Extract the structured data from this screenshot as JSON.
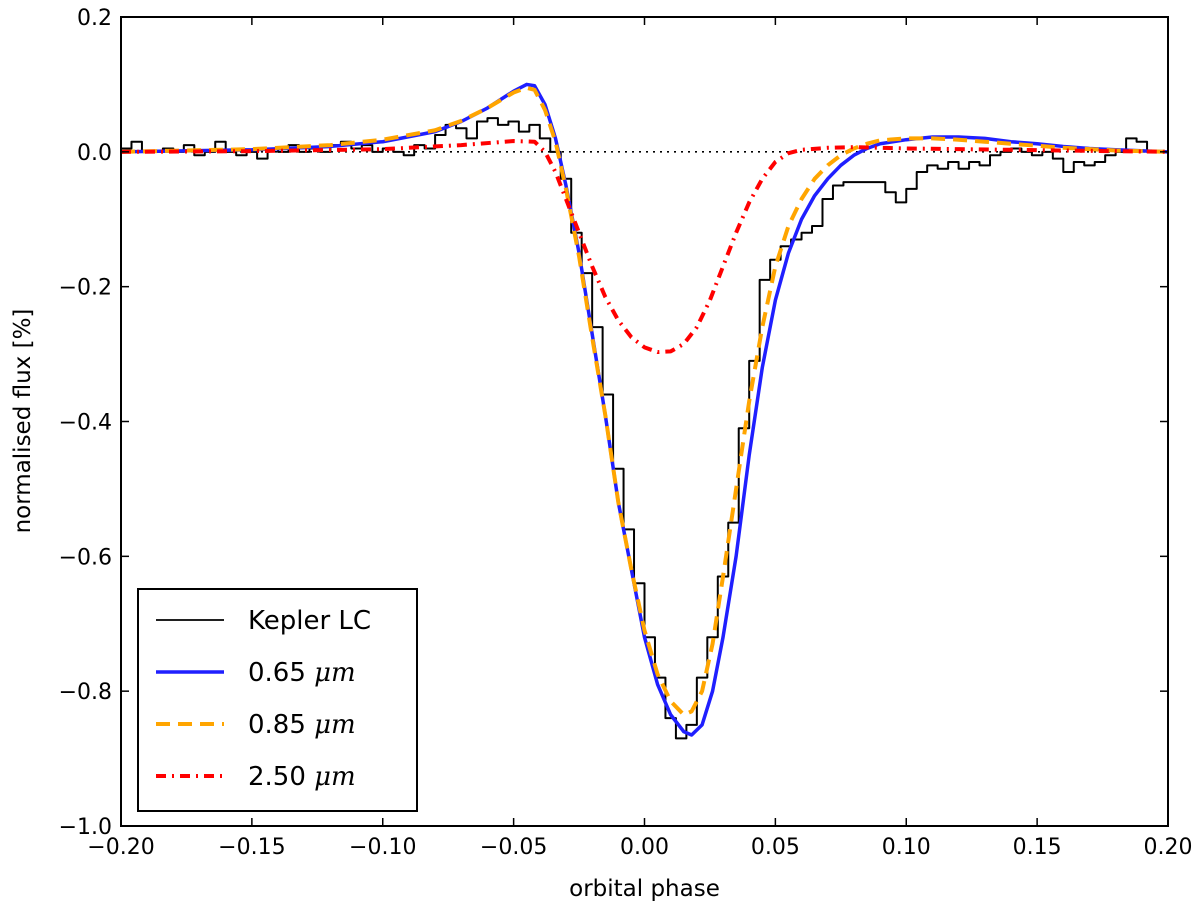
{
  "chart_data": {
    "type": "line",
    "xlabel": "orbital phase",
    "ylabel": "normalised flux [%]",
    "xlim": [
      -0.2,
      0.2
    ],
    "ylim": [
      -1.0,
      0.2
    ],
    "x_ticks": [
      -0.2,
      -0.15,
      -0.1,
      -0.05,
      0.0,
      0.05,
      0.1,
      0.15,
      0.2
    ],
    "x_tick_labels": [
      "−0.20",
      "−0.15",
      "−0.10",
      "−0.05",
      "0.00",
      "0.05",
      "0.10",
      "0.15",
      "0.20"
    ],
    "y_ticks": [
      -1.0,
      -0.8,
      -0.6,
      -0.4,
      -0.2,
      0.0,
      0.2
    ],
    "y_tick_labels": [
      "−1.0",
      "−0.8",
      "−0.6",
      "−0.4",
      "−0.2",
      "0.0",
      "0.2"
    ],
    "grid": false,
    "legend_placement": "lower-left",
    "reference_line": {
      "y": 0.0,
      "style": "dotted",
      "color": "#000000"
    },
    "series": [
      {
        "name": "Kepler LC",
        "style": "step",
        "color": "#000000",
        "x": [
          -0.2,
          -0.196,
          -0.192,
          -0.188,
          -0.184,
          -0.18,
          -0.176,
          -0.172,
          -0.168,
          -0.164,
          -0.16,
          -0.156,
          -0.152,
          -0.148,
          -0.144,
          -0.14,
          -0.136,
          -0.132,
          -0.128,
          -0.124,
          -0.12,
          -0.116,
          -0.112,
          -0.108,
          -0.104,
          -0.1,
          -0.096,
          -0.092,
          -0.088,
          -0.084,
          -0.08,
          -0.076,
          -0.072,
          -0.068,
          -0.064,
          -0.06,
          -0.056,
          -0.052,
          -0.048,
          -0.044,
          -0.04,
          -0.036,
          -0.032,
          -0.028,
          -0.024,
          -0.02,
          -0.016,
          -0.012,
          -0.008,
          -0.004,
          0.0,
          0.004,
          0.008,
          0.012,
          0.016,
          0.02,
          0.024,
          0.028,
          0.032,
          0.036,
          0.04,
          0.044,
          0.048,
          0.052,
          0.056,
          0.06,
          0.064,
          0.068,
          0.072,
          0.076,
          0.08,
          0.084,
          0.088,
          0.092,
          0.096,
          0.1,
          0.104,
          0.108,
          0.112,
          0.116,
          0.12,
          0.124,
          0.128,
          0.132,
          0.136,
          0.14,
          0.144,
          0.148,
          0.152,
          0.156,
          0.16,
          0.164,
          0.168,
          0.172,
          0.176,
          0.18,
          0.184,
          0.188,
          0.192,
          0.196
        ],
        "y": [
          0.005,
          0.015,
          0.0,
          0.0,
          0.005,
          0.0,
          0.01,
          -0.005,
          0.0,
          0.015,
          0.0,
          -0.005,
          0.0,
          -0.01,
          0.005,
          0.0,
          0.01,
          0.0,
          0.005,
          0.0,
          0.01,
          0.015,
          0.005,
          0.01,
          0.0,
          0.005,
          0.0,
          -0.005,
          0.01,
          0.005,
          0.025,
          0.04,
          0.035,
          0.02,
          0.045,
          0.05,
          0.04,
          0.045,
          0.03,
          0.04,
          0.02,
          0.0,
          -0.04,
          -0.12,
          -0.18,
          -0.26,
          -0.36,
          -0.47,
          -0.56,
          -0.64,
          -0.72,
          -0.78,
          -0.84,
          -0.87,
          -0.85,
          -0.78,
          -0.72,
          -0.63,
          -0.55,
          -0.41,
          -0.31,
          -0.19,
          -0.16,
          -0.14,
          -0.13,
          -0.12,
          -0.11,
          -0.07,
          -0.05,
          -0.045,
          -0.045,
          -0.045,
          -0.045,
          -0.06,
          -0.075,
          -0.055,
          -0.03,
          -0.02,
          -0.025,
          -0.015,
          -0.025,
          -0.015,
          -0.02,
          -0.005,
          0.0,
          0.005,
          0.0,
          -0.005,
          0.0,
          -0.01,
          -0.03,
          -0.015,
          -0.02,
          -0.015,
          -0.005,
          0.0,
          0.02,
          0.015,
          0.0,
          0.0
        ]
      },
      {
        "name": "0.65 μm",
        "style": "solid",
        "color": "#1f1fff",
        "x": [
          -0.2,
          -0.15,
          -0.12,
          -0.1,
          -0.08,
          -0.07,
          -0.06,
          -0.05,
          -0.045,
          -0.042,
          -0.038,
          -0.034,
          -0.03,
          -0.025,
          -0.02,
          -0.015,
          -0.01,
          -0.005,
          0.0,
          0.005,
          0.01,
          0.015,
          0.018,
          0.022,
          0.026,
          0.03,
          0.035,
          0.04,
          0.045,
          0.05,
          0.055,
          0.06,
          0.065,
          0.07,
          0.075,
          0.08,
          0.085,
          0.09,
          0.1,
          0.11,
          0.12,
          0.13,
          0.14,
          0.15,
          0.16,
          0.17,
          0.18,
          0.2
        ],
        "y": [
          0.0,
          0.003,
          0.008,
          0.015,
          0.03,
          0.045,
          0.065,
          0.09,
          0.1,
          0.098,
          0.07,
          0.02,
          -0.05,
          -0.15,
          -0.27,
          -0.39,
          -0.52,
          -0.62,
          -0.72,
          -0.79,
          -0.835,
          -0.86,
          -0.865,
          -0.85,
          -0.8,
          -0.72,
          -0.6,
          -0.45,
          -0.32,
          -0.22,
          -0.15,
          -0.1,
          -0.065,
          -0.04,
          -0.02,
          -0.005,
          0.005,
          0.012,
          0.018,
          0.022,
          0.022,
          0.02,
          0.015,
          0.012,
          0.008,
          0.005,
          0.003,
          0.0
        ]
      },
      {
        "name": "0.85 μm",
        "style": "dashed",
        "color": "#ffa500",
        "x": [
          -0.2,
          -0.15,
          -0.12,
          -0.1,
          -0.08,
          -0.07,
          -0.06,
          -0.05,
          -0.045,
          -0.042,
          -0.038,
          -0.034,
          -0.03,
          -0.025,
          -0.02,
          -0.015,
          -0.01,
          -0.005,
          0.0,
          0.005,
          0.01,
          0.015,
          0.018,
          0.022,
          0.026,
          0.03,
          0.035,
          0.04,
          0.045,
          0.05,
          0.055,
          0.06,
          0.065,
          0.07,
          0.075,
          0.08,
          0.085,
          0.09,
          0.1,
          0.11,
          0.12,
          0.13,
          0.14,
          0.15,
          0.16,
          0.17,
          0.18,
          0.2
        ],
        "y": [
          0.0,
          0.004,
          0.01,
          0.018,
          0.032,
          0.046,
          0.065,
          0.088,
          0.095,
          0.092,
          0.062,
          0.015,
          -0.055,
          -0.155,
          -0.275,
          -0.39,
          -0.52,
          -0.62,
          -0.71,
          -0.775,
          -0.815,
          -0.835,
          -0.83,
          -0.8,
          -0.73,
          -0.63,
          -0.5,
          -0.37,
          -0.26,
          -0.17,
          -0.11,
          -0.07,
          -0.04,
          -0.02,
          -0.005,
          0.005,
          0.012,
          0.017,
          0.02,
          0.02,
          0.018,
          0.015,
          0.012,
          0.009,
          0.006,
          0.004,
          0.002,
          0.0
        ]
      },
      {
        "name": "2.50 μm",
        "style": "dashdot",
        "color": "#ff0000",
        "x": [
          -0.2,
          -0.15,
          -0.1,
          -0.07,
          -0.05,
          -0.042,
          -0.038,
          -0.034,
          -0.03,
          -0.025,
          -0.02,
          -0.015,
          -0.01,
          -0.005,
          0.0,
          0.005,
          0.01,
          0.015,
          0.02,
          0.025,
          0.03,
          0.035,
          0.04,
          0.045,
          0.05,
          0.055,
          0.06,
          0.07,
          0.08,
          0.09,
          0.1,
          0.12,
          0.14,
          0.16,
          0.18,
          0.2
        ],
        "y": [
          0.0,
          0.001,
          0.004,
          0.01,
          0.016,
          0.015,
          0.0,
          -0.03,
          -0.07,
          -0.12,
          -0.17,
          -0.215,
          -0.25,
          -0.275,
          -0.29,
          -0.297,
          -0.296,
          -0.285,
          -0.26,
          -0.22,
          -0.17,
          -0.12,
          -0.075,
          -0.04,
          -0.015,
          -0.002,
          0.003,
          0.006,
          0.007,
          0.006,
          0.005,
          0.004,
          0.003,
          0.002,
          0.001,
          0.0
        ]
      }
    ]
  }
}
